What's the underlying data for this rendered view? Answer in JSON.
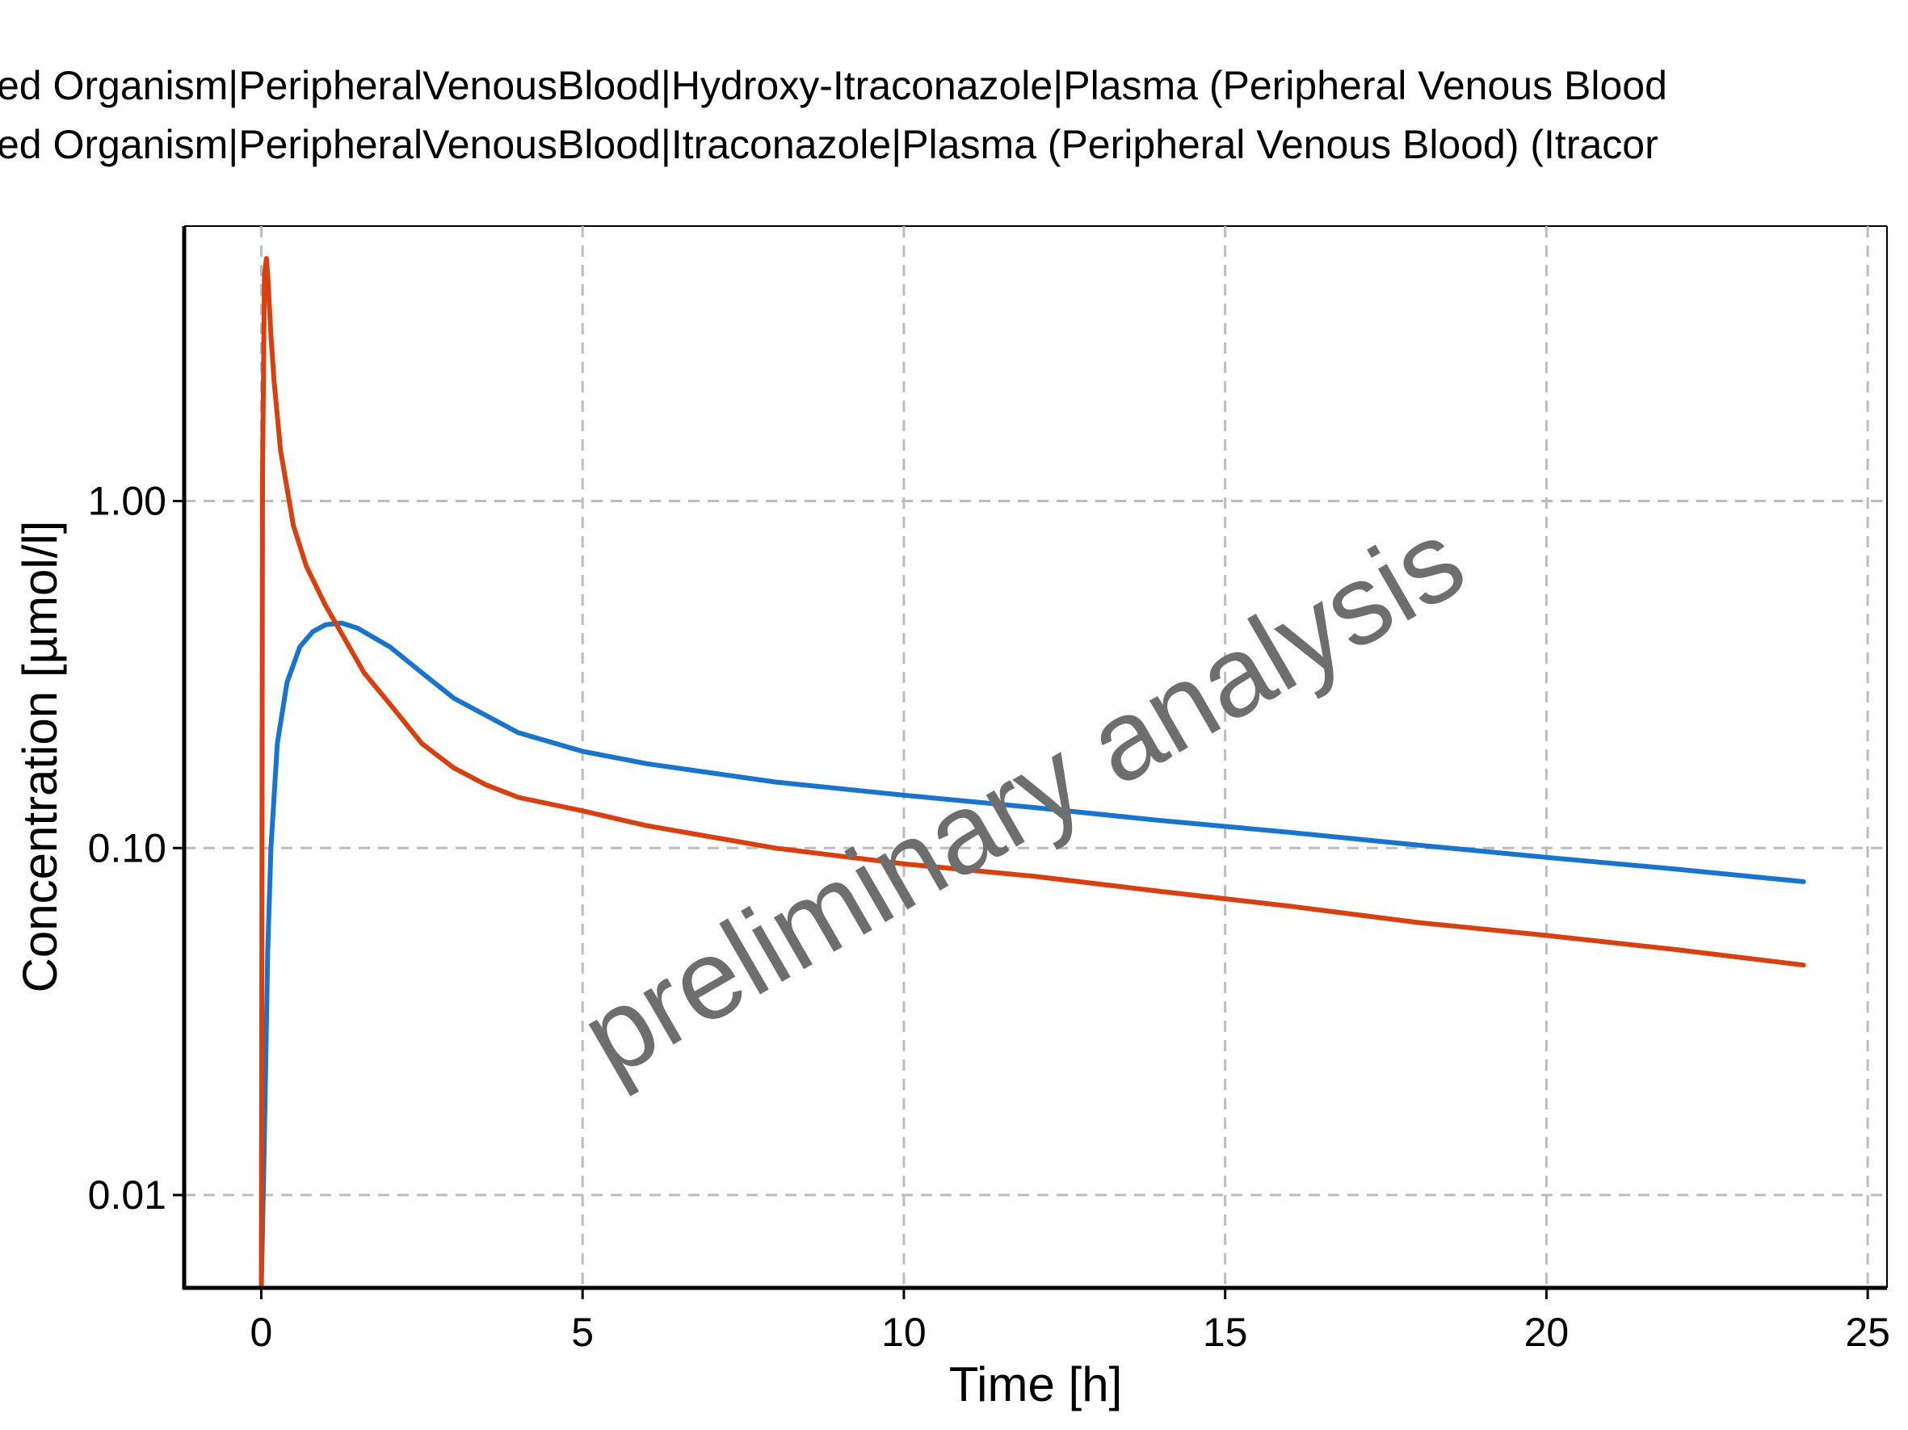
{
  "legend": {
    "lines": [
      "ed Organism|PeripheralVenousBlood|Hydroxy-Itraconazole|Plasma (Peripheral Venous Blood",
      "ed Organism|PeripheralVenousBlood|Itraconazole|Plasma (Peripheral Venous Blood) (Itracor"
    ]
  },
  "watermark": "preliminary analysis",
  "colors": {
    "hydroxy_itraconazole": "#1874CD",
    "itraconazole": "#D94010",
    "grid": "#bdbdbd",
    "axis": "#000000",
    "watermark": "#6e6e6e"
  },
  "chart_data": {
    "type": "line",
    "xlabel": "Time [h]",
    "ylabel": "Concentration [µmol/l]",
    "yscale": "log",
    "xlim": [
      -1.2,
      25.3
    ],
    "ylim": [
      0.0054,
      6.2
    ],
    "xticks": [
      0,
      5,
      10,
      15,
      20,
      25
    ],
    "xtick_labels": [
      "0",
      "5",
      "10",
      "15",
      "20",
      "25"
    ],
    "yticks": [
      0.01,
      0.1,
      1.0
    ],
    "ytick_labels": [
      "0.01",
      "0.10",
      "1.00"
    ],
    "grid": true,
    "series": [
      {
        "key": "hydroxy_itraconazole",
        "x": [
          0.0,
          0.05,
          0.1,
          0.15,
          0.25,
          0.4,
          0.6,
          0.8,
          1.0,
          1.25,
          1.5,
          2.0,
          2.5,
          3.0,
          4.0,
          5.0,
          6.0,
          8.0,
          10.0,
          12.0,
          14.0,
          16.0,
          18.0,
          20.0,
          22.0,
          24.0
        ],
        "y": [
          0.0054,
          0.015,
          0.05,
          0.1,
          0.2,
          0.3,
          0.38,
          0.42,
          0.44,
          0.445,
          0.43,
          0.38,
          0.32,
          0.27,
          0.215,
          0.19,
          0.175,
          0.155,
          0.142,
          0.131,
          0.12,
          0.111,
          0.102,
          0.094,
          0.087,
          0.08
        ]
      },
      {
        "key": "itraconazole",
        "x": [
          0.0,
          0.02,
          0.05,
          0.08,
          0.1,
          0.15,
          0.2,
          0.3,
          0.5,
          0.7,
          1.0,
          1.3,
          1.6,
          2.0,
          2.5,
          3.0,
          3.5,
          4.0,
          5.0,
          6.0,
          8.0,
          10.0,
          12.0,
          14.0,
          16.0,
          18.0,
          20.0,
          22.0,
          24.0
        ],
        "y": [
          0.0054,
          1.2,
          4.5,
          5.0,
          4.5,
          3.0,
          2.2,
          1.4,
          0.85,
          0.65,
          0.5,
          0.4,
          0.32,
          0.26,
          0.2,
          0.17,
          0.152,
          0.14,
          0.128,
          0.116,
          0.1,
          0.09,
          0.083,
          0.075,
          0.068,
          0.061,
          0.056,
          0.051,
          0.046
        ]
      }
    ]
  }
}
